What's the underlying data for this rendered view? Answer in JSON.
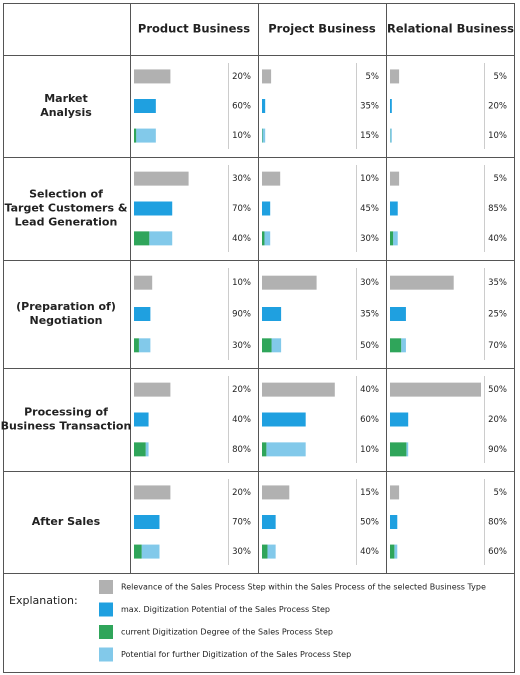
{
  "table": {
    "columns": [
      "Product Business",
      "Project Business",
      "Relational Business"
    ],
    "rows": [
      {
        "label": [
          "Market",
          "Analysis"
        ],
        "cells": [
          {
            "values": [
              20,
              60,
              10
            ],
            "value_labels": [
              "20%",
              "60%",
              "10%"
            ]
          },
          {
            "values": [
              5,
              35,
              15
            ],
            "value_labels": [
              "5%",
              "35%",
              "15%"
            ]
          },
          {
            "values": [
              5,
              20,
              10
            ],
            "value_labels": [
              "5%",
              "20%",
              "10%"
            ]
          }
        ]
      },
      {
        "label": [
          "Selection of",
          "Target Customers &",
          "Lead Generation"
        ],
        "cells": [
          {
            "values": [
              30,
              70,
              40
            ],
            "value_labels": [
              "30%",
              "70%",
              "40%"
            ]
          },
          {
            "values": [
              10,
              45,
              30
            ],
            "value_labels": [
              "10%",
              "45%",
              "30%"
            ]
          },
          {
            "values": [
              5,
              85,
              40
            ],
            "value_labels": [
              "5%",
              "85%",
              "40%"
            ]
          }
        ]
      },
      {
        "label": [
          "(Preparation of)",
          "Negotiation"
        ],
        "cells": [
          {
            "values": [
              10,
              90,
              30
            ],
            "value_labels": [
              "10%",
              "90%",
              "30%"
            ]
          },
          {
            "values": [
              30,
              35,
              50
            ],
            "value_labels": [
              "30%",
              "35%",
              "50%"
            ]
          },
          {
            "values": [
              35,
              25,
              70
            ],
            "value_labels": [
              "35%",
              "25%",
              "70%"
            ]
          }
        ]
      },
      {
        "label": [
          "Processing of",
          "Business Transaction"
        ],
        "cells": [
          {
            "values": [
              20,
              40,
              80
            ],
            "value_labels": [
              "20%",
              "40%",
              "80%"
            ]
          },
          {
            "values": [
              40,
              60,
              10
            ],
            "value_labels": [
              "40%",
              "60%",
              "10%"
            ]
          },
          {
            "values": [
              50,
              20,
              90
            ],
            "value_labels": [
              "50%",
              "20%",
              "90%"
            ]
          }
        ]
      },
      {
        "label": [
          "After Sales"
        ],
        "cells": [
          {
            "values": [
              20,
              70,
              30
            ],
            "value_labels": [
              "20%",
              "70%",
              "30%"
            ]
          },
          {
            "values": [
              15,
              50,
              40
            ],
            "value_labels": [
              "15%",
              "50%",
              "40%"
            ]
          },
          {
            "values": [
              5,
              80,
              60
            ],
            "value_labels": [
              "5%",
              "80%",
              "60%"
            ]
          }
        ]
      }
    ]
  },
  "legend": {
    "title": "Explanation:",
    "items": [
      {
        "label": "Relevance of the Sales Process Step within the Sales Process of the selected Business Type",
        "color": "#b1b1b1"
      },
      {
        "label": "max. Digitization Potential of the Sales Process Step",
        "color": "#1fa0e0"
      },
      {
        "label": "current Digitization Degree of the Sales Process Step",
        "color": "#2fa55a"
      },
      {
        "label": "Potential for further Digitization of the Sales Process Step",
        "color": "#82c9ea"
      }
    ]
  }
}
